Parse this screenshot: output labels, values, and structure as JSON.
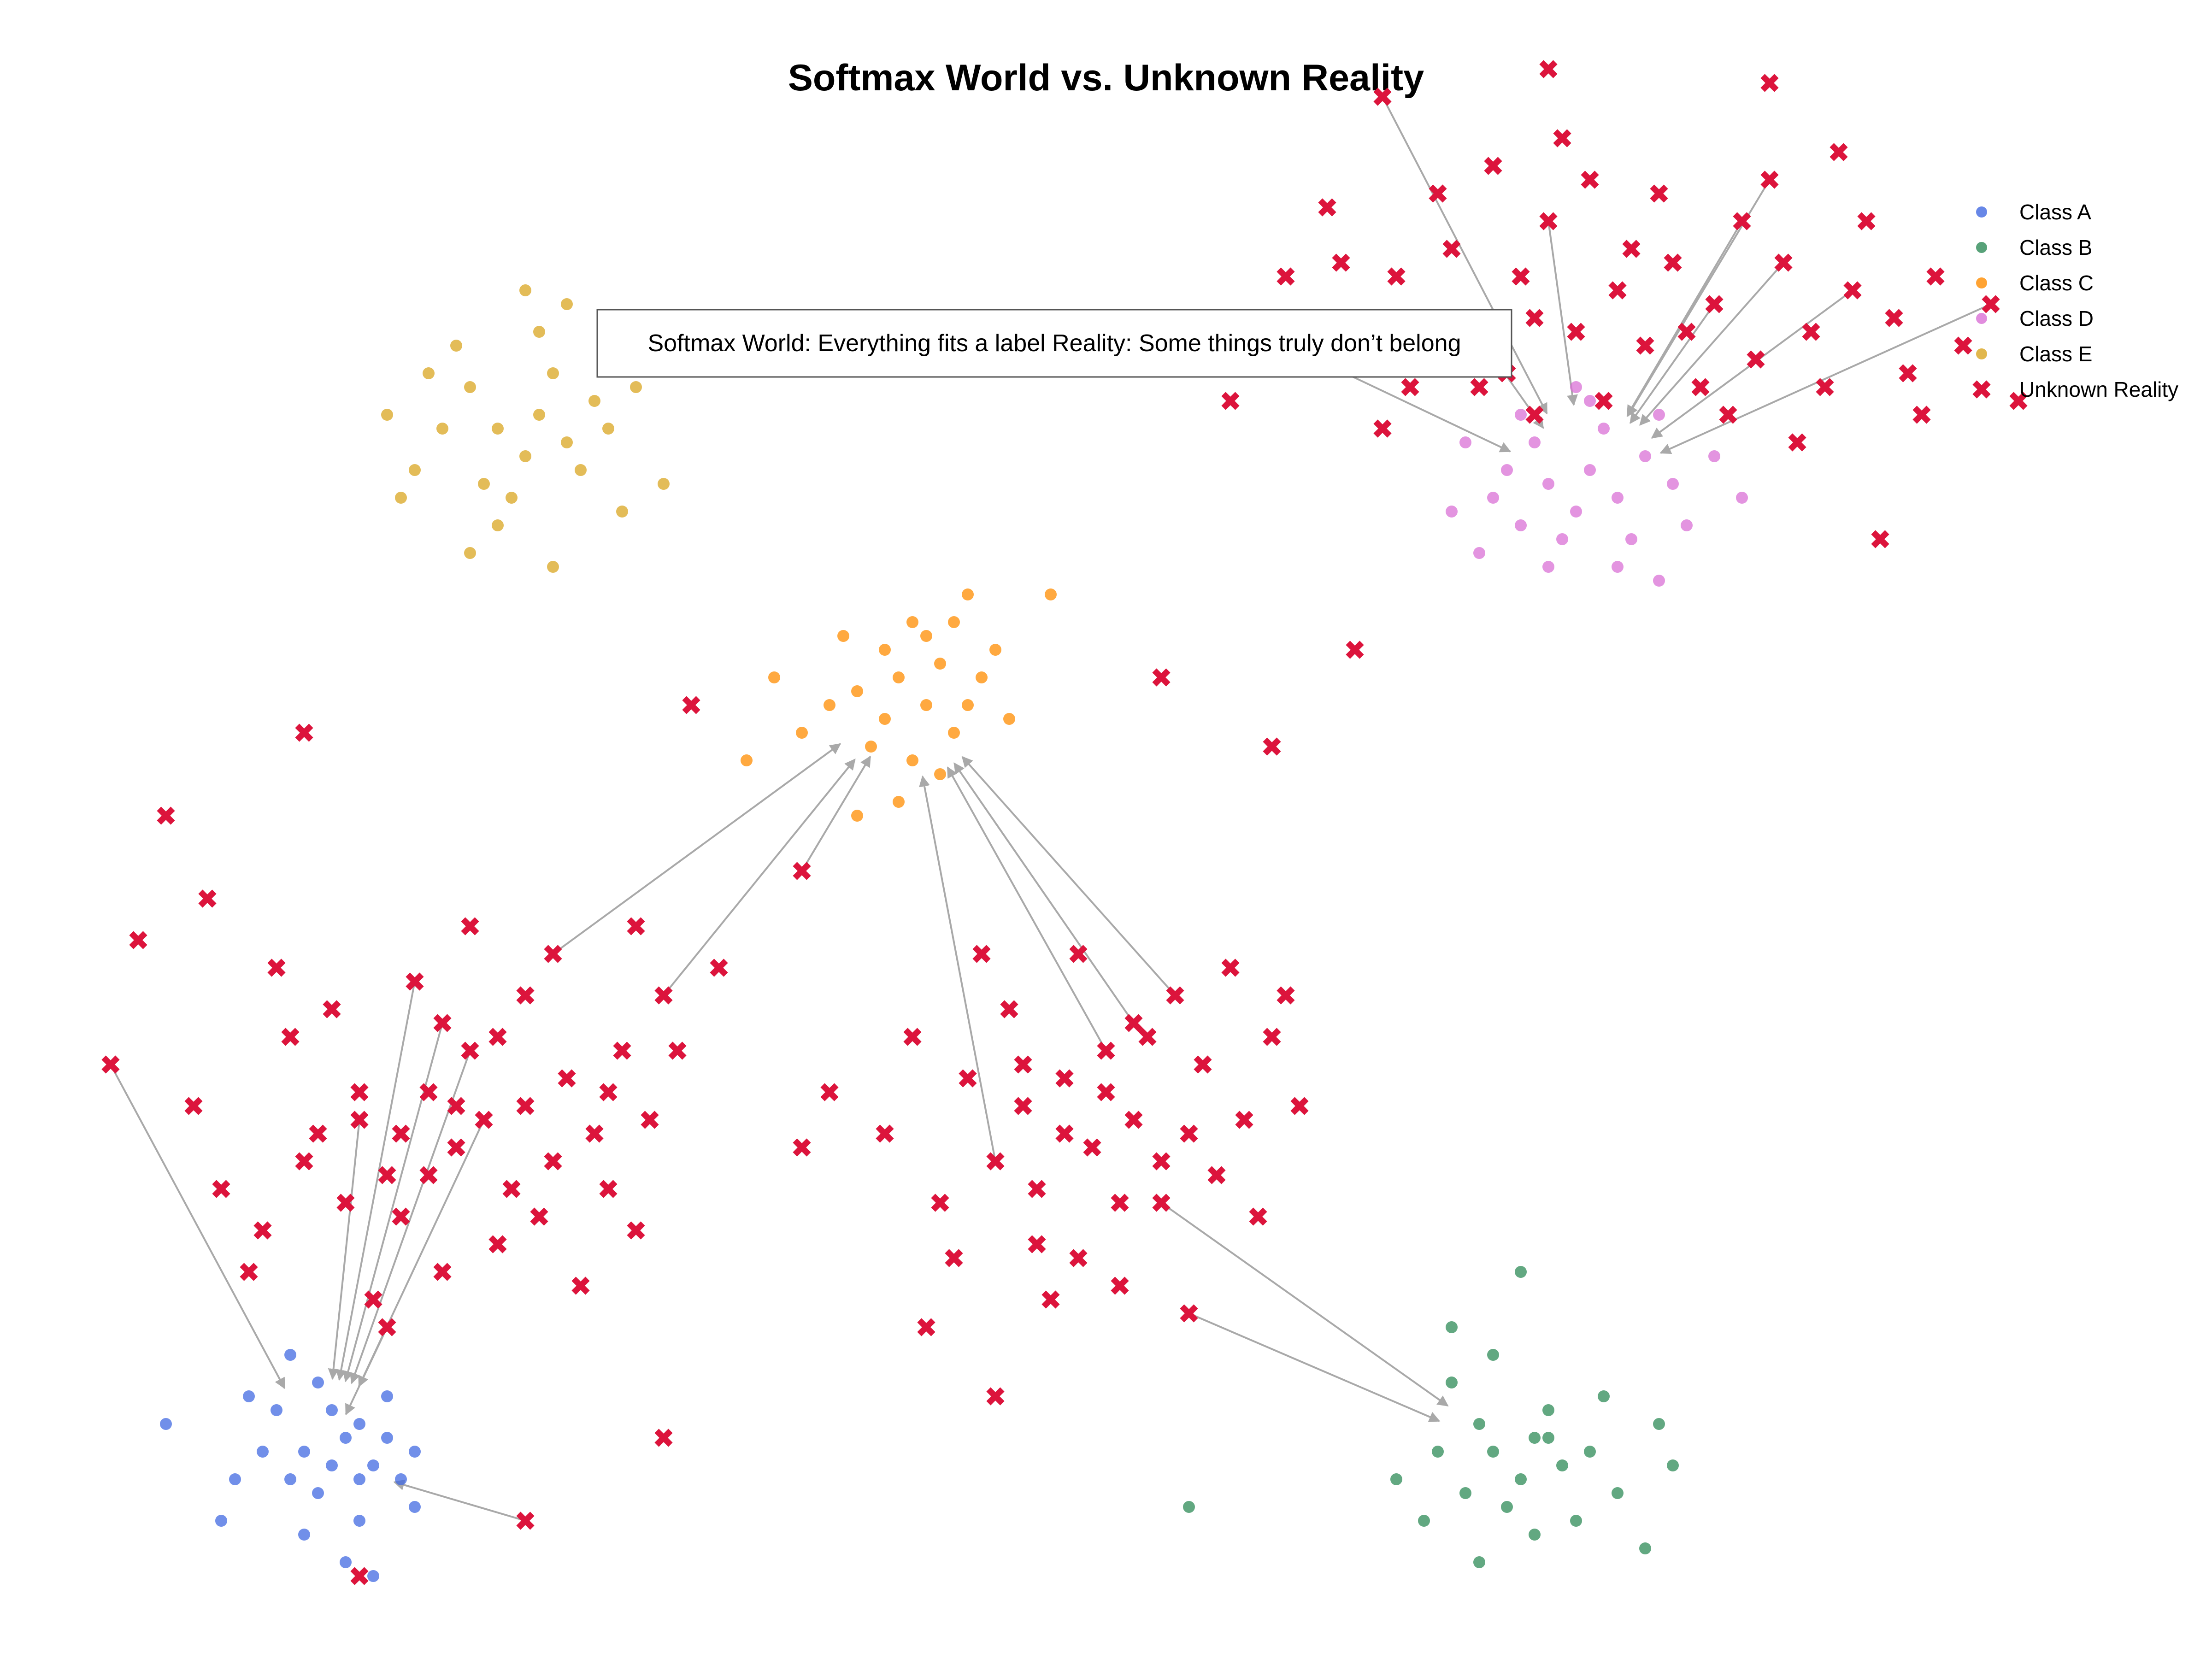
{
  "chart_data": {
    "type": "scatter",
    "title": "Softmax World vs. Unknown Reality",
    "xlabel": "",
    "ylabel": "",
    "axes_visible": false,
    "grid": false,
    "legend_position": "top-right",
    "annotation": "Softmax World: Everything fits a label Reality: Some things truly don’t belong",
    "series": [
      {
        "name": "Class A",
        "marker": "circle",
        "color": "#4169E1",
        "points": [
          [
            -2.9,
            -2.5
          ],
          [
            -2.75,
            -2.45
          ],
          [
            -2.7,
            -2.4
          ],
          [
            -2.95,
            -2.6
          ],
          [
            -2.85,
            -2.65
          ],
          [
            -2.65,
            -2.55
          ],
          [
            -2.8,
            -2.35
          ],
          [
            -3.05,
            -2.5
          ],
          [
            -2.6,
            -2.45
          ],
          [
            -2.9,
            -2.8
          ],
          [
            -2.7,
            -2.75
          ],
          [
            -3.15,
            -2.6
          ],
          [
            -2.55,
            -2.6
          ],
          [
            -2.85,
            -2.25
          ],
          [
            -3.0,
            -2.35
          ],
          [
            -2.75,
            -2.9
          ],
          [
            -3.4,
            -2.4
          ],
          [
            -2.5,
            -2.7
          ],
          [
            -2.95,
            -2.15
          ],
          [
            -3.2,
            -2.75
          ],
          [
            -2.6,
            -2.3
          ],
          [
            -2.8,
            -2.55
          ],
          [
            -2.7,
            -2.6
          ],
          [
            -2.65,
            -2.95
          ],
          [
            -3.1,
            -2.3
          ],
          [
            -2.5,
            -2.5
          ]
        ]
      },
      {
        "name": "Class B",
        "marker": "circle",
        "color": "#2E8B57",
        "points": [
          [
            1.4,
            -2.5
          ],
          [
            1.55,
            -2.45
          ],
          [
            1.5,
            -2.6
          ],
          [
            1.35,
            -2.4
          ],
          [
            1.65,
            -2.55
          ],
          [
            1.3,
            -2.65
          ],
          [
            1.6,
            -2.35
          ],
          [
            1.45,
            -2.7
          ],
          [
            1.75,
            -2.5
          ],
          [
            1.2,
            -2.5
          ],
          [
            1.8,
            -2.3
          ],
          [
            1.25,
            -2.25
          ],
          [
            1.55,
            -2.8
          ],
          [
            1.85,
            -2.65
          ],
          [
            1.05,
            -2.6
          ],
          [
            1.4,
            -2.15
          ],
          [
            2.0,
            -2.4
          ],
          [
            1.7,
            -2.75
          ],
          [
            1.35,
            -2.9
          ],
          [
            1.95,
            -2.85
          ],
          [
            1.15,
            -2.75
          ],
          [
            0.3,
            -2.7
          ],
          [
            1.5,
            -1.85
          ],
          [
            2.05,
            -2.55
          ],
          [
            1.25,
            -2.05
          ],
          [
            1.6,
            -2.45
          ]
        ]
      },
      {
        "name": "Class C",
        "marker": "circle",
        "color": "#FF8C00",
        "points": [
          [
            -0.8,
            0.15
          ],
          [
            -0.65,
            0.2
          ],
          [
            -0.55,
            0.1
          ],
          [
            -0.75,
            0.3
          ],
          [
            -0.9,
            0.25
          ],
          [
            -0.6,
            0.35
          ],
          [
            -0.5,
            0.2
          ],
          [
            -0.85,
            0.05
          ],
          [
            -0.7,
            0.0
          ],
          [
            -1.0,
            0.2
          ],
          [
            -0.45,
            0.3
          ],
          [
            -0.65,
            0.45
          ],
          [
            -1.1,
            0.1
          ],
          [
            -0.55,
            0.5
          ],
          [
            -0.8,
            0.4
          ],
          [
            -0.35,
            0.15
          ],
          [
            -1.2,
            0.3
          ],
          [
            -0.6,
            -0.05
          ],
          [
            -0.95,
            0.45
          ],
          [
            -0.4,
            0.4
          ],
          [
            -1.3,
            0.0
          ],
          [
            -0.75,
            -0.15
          ],
          [
            -0.2,
            0.6
          ],
          [
            -0.9,
            -0.2
          ],
          [
            -0.5,
            0.6
          ],
          [
            -0.7,
            0.5
          ]
        ]
      },
      {
        "name": "Class D",
        "marker": "circle",
        "color": "#DA70D6",
        "points": [
          [
            1.6,
            1.0
          ],
          [
            1.75,
            1.05
          ],
          [
            1.7,
            0.9
          ],
          [
            1.55,
            1.15
          ],
          [
            1.85,
            0.95
          ],
          [
            1.5,
            0.85
          ],
          [
            1.8,
            1.2
          ],
          [
            1.65,
            0.8
          ],
          [
            1.95,
            1.1
          ],
          [
            1.45,
            1.05
          ],
          [
            1.9,
            0.8
          ],
          [
            1.4,
            0.95
          ],
          [
            2.05,
            1.0
          ],
          [
            1.6,
            0.7
          ],
          [
            1.75,
            1.3
          ],
          [
            2.1,
            0.85
          ],
          [
            1.3,
            1.15
          ],
          [
            1.85,
            0.7
          ],
          [
            1.5,
            1.25
          ],
          [
            2.2,
            1.1
          ],
          [
            1.35,
            0.75
          ],
          [
            2.0,
            0.65
          ],
          [
            1.7,
            1.35
          ],
          [
            2.3,
            0.95
          ],
          [
            1.25,
            0.9
          ],
          [
            2.0,
            1.25
          ]
        ]
      },
      {
        "name": "Class E",
        "marker": "circle",
        "color": "#DAA520",
        "points": [
          [
            -2.2,
            1.2
          ],
          [
            -2.05,
            1.25
          ],
          [
            -2.1,
            1.1
          ],
          [
            -2.3,
            1.35
          ],
          [
            -1.95,
            1.15
          ],
          [
            -2.25,
            1.0
          ],
          [
            -2.0,
            1.4
          ],
          [
            -2.15,
            0.95
          ],
          [
            -1.85,
            1.3
          ],
          [
            -2.4,
            1.2
          ],
          [
            -1.9,
            1.05
          ],
          [
            -2.35,
            1.5
          ],
          [
            -2.05,
            1.55
          ],
          [
            -1.8,
            1.2
          ],
          [
            -2.5,
            1.05
          ],
          [
            -2.2,
            0.85
          ],
          [
            -1.75,
            0.9
          ],
          [
            -2.45,
            1.4
          ],
          [
            -2.1,
            1.7
          ],
          [
            -1.7,
            1.35
          ],
          [
            -2.6,
            1.25
          ],
          [
            -2.0,
            0.7
          ],
          [
            -2.3,
            0.75
          ],
          [
            -1.6,
            1.0
          ],
          [
            -2.55,
            0.95
          ],
          [
            -1.95,
            1.65
          ]
        ]
      },
      {
        "name": "Unknown Reality",
        "marker": "x",
        "color": "#DC143C",
        "points": [
          [
            -2.25,
            -1.3
          ],
          [
            -2.1,
            -1.25
          ],
          [
            -2.35,
            -1.4
          ],
          [
            -2.0,
            -1.45
          ],
          [
            -2.45,
            -1.2
          ],
          [
            -2.15,
            -1.55
          ],
          [
            -2.3,
            -1.05
          ],
          [
            -1.95,
            -1.15
          ],
          [
            -2.55,
            -1.35
          ],
          [
            -2.05,
            -1.65
          ],
          [
            -2.6,
            -1.5
          ],
          [
            -1.85,
            -1.35
          ],
          [
            -2.4,
            -0.95
          ],
          [
            -2.7,
            -1.2
          ],
          [
            -1.8,
            -1.55
          ],
          [
            -2.2,
            -1.75
          ],
          [
            -2.75,
            -1.6
          ],
          [
            -1.75,
            -1.05
          ],
          [
            -2.5,
            -0.8
          ],
          [
            -2.85,
            -1.35
          ],
          [
            -1.65,
            -1.3
          ],
          [
            -2.95,
            -1.0
          ],
          [
            -2.1,
            -0.85
          ],
          [
            -3.05,
            -1.7
          ],
          [
            -1.6,
            -0.85
          ],
          [
            -3.3,
            -1.25
          ],
          [
            -2.65,
            -1.95
          ],
          [
            -1.9,
            -1.9
          ],
          [
            -3.2,
            -1.55
          ],
          [
            -1.7,
            -1.7
          ],
          [
            -2.6,
            -2.05
          ],
          [
            -3.5,
            -0.65
          ],
          [
            -3.0,
            -0.75
          ],
          [
            -1.7,
            -0.6
          ],
          [
            -2.3,
            -0.6
          ],
          [
            -2.8,
            -0.9
          ],
          [
            -3.6,
            -1.1
          ],
          [
            -1.55,
            -1.05
          ],
          [
            -2.4,
            -1.85
          ],
          [
            -3.1,
            -1.85
          ],
          [
            -3.25,
            -0.5
          ],
          [
            -1.4,
            -0.75
          ],
          [
            -2.0,
            -0.7
          ],
          [
            -2.55,
            -1.65
          ],
          [
            -2.9,
            -1.45
          ],
          [
            -2.2,
            -1.0
          ],
          [
            -2.45,
            -1.5
          ],
          [
            -1.8,
            -1.2
          ],
          [
            -2.7,
            -1.3
          ],
          [
            -2.35,
            -1.25
          ],
          [
            -0.1,
            -1.8
          ],
          [
            -0.05,
            -1.4
          ],
          [
            0.1,
            -1.3
          ],
          [
            -0.25,
            -1.55
          ],
          [
            0.2,
            -1.6
          ],
          [
            -0.15,
            -1.15
          ],
          [
            0.3,
            -1.35
          ],
          [
            0.05,
            -1.9
          ],
          [
            -0.3,
            -1.25
          ],
          [
            0.35,
            -1.1
          ],
          [
            -0.4,
            -1.45
          ],
          [
            0.15,
            -1.0
          ],
          [
            -0.2,
            -1.95
          ],
          [
            0.4,
            -1.5
          ],
          [
            0.0,
            -1.2
          ],
          [
            -0.35,
            -0.9
          ],
          [
            0.25,
            -0.85
          ],
          [
            -0.5,
            -1.15
          ],
          [
            0.5,
            -1.3
          ],
          [
            -0.1,
            -0.7
          ],
          [
            0.45,
            -0.75
          ],
          [
            -0.6,
            -1.6
          ],
          [
            0.3,
            -2.0
          ],
          [
            -0.45,
            -0.7
          ],
          [
            0.6,
            -1.0
          ],
          [
            -0.7,
            -1.0
          ],
          [
            0.05,
            -1.6
          ],
          [
            -0.25,
            -1.75
          ],
          [
            0.1,
            -0.95
          ],
          [
            -0.55,
            -1.8
          ],
          [
            0.2,
            -1.45
          ],
          [
            -0.15,
            -1.35
          ],
          [
            0.65,
            -0.85
          ],
          [
            -0.8,
            -1.35
          ],
          [
            0.0,
            -1.05
          ],
          [
            0.7,
            -1.25
          ],
          [
            -1.1,
            -1.4
          ],
          [
            -0.65,
            -2.05
          ],
          [
            0.55,
            -1.65
          ],
          [
            -0.3,
            -1.1
          ],
          [
            1.3,
            1.6
          ],
          [
            1.5,
            1.75
          ],
          [
            1.7,
            1.55
          ],
          [
            1.45,
            1.4
          ],
          [
            1.85,
            1.7
          ],
          [
            1.25,
            1.85
          ],
          [
            1.6,
            1.95
          ],
          [
            1.95,
            1.5
          ],
          [
            1.35,
            1.35
          ],
          [
            2.05,
            1.8
          ],
          [
            1.15,
            1.55
          ],
          [
            1.75,
            2.1
          ],
          [
            2.2,
            1.65
          ],
          [
            1.05,
            1.75
          ],
          [
            2.35,
            1.45
          ],
          [
            1.55,
            1.25
          ],
          [
            2.0,
            2.05
          ],
          [
            0.95,
            1.5
          ],
          [
            2.45,
            1.8
          ],
          [
            1.2,
            2.05
          ],
          [
            2.55,
            1.55
          ],
          [
            0.85,
            1.8
          ],
          [
            2.25,
            1.25
          ],
          [
            1.65,
            2.25
          ],
          [
            2.7,
            1.7
          ],
          [
            0.75,
            1.45
          ],
          [
            2.6,
            1.35
          ],
          [
            1.0,
            1.2
          ],
          [
            2.85,
            1.6
          ],
          [
            1.8,
            1.3
          ],
          [
            2.4,
            2.1
          ],
          [
            0.65,
            1.75
          ],
          [
            2.9,
            1.4
          ],
          [
            2.15,
            1.35
          ],
          [
            1.4,
            2.15
          ],
          [
            2.75,
            1.95
          ],
          [
            0.55,
            1.55
          ],
          [
            3.0,
            1.75
          ],
          [
            1.9,
            1.85
          ],
          [
            2.5,
            1.15
          ],
          [
            1.1,
            1.35
          ],
          [
            3.1,
            1.5
          ],
          [
            2.3,
            1.95
          ],
          [
            0.45,
            1.3
          ],
          [
            2.65,
            2.2
          ],
          [
            1.55,
            1.6
          ],
          [
            2.95,
            1.25
          ],
          [
            0.8,
            2.0
          ],
          [
            3.2,
            1.65
          ],
          [
            2.1,
            1.55
          ],
          [
            -3.4,
            -0.2
          ],
          [
            -2.9,
            0.1
          ],
          [
            -1.0,
            -1.2
          ],
          [
            -1.5,
            0.2
          ],
          [
            -1.1,
            -0.4
          ],
          [
            0.2,
            0.3
          ],
          [
            0.6,
            0.05
          ],
          [
            0.9,
            0.4
          ],
          [
            2.8,
            0.8
          ],
          [
            3.3,
            1.3
          ],
          [
            1.0,
            2.4
          ],
          [
            1.6,
            2.5
          ],
          [
            2.4,
            2.45
          ],
          [
            -2.7,
            -2.95
          ],
          [
            -2.2,
            -3.5
          ],
          [
            -0.4,
            -2.3
          ],
          [
            -2.1,
            -2.75
          ],
          [
            -1.6,
            -2.45
          ]
        ]
      }
    ]
  },
  "legend": {
    "items": [
      {
        "label": "Class A",
        "color": "#4169E1",
        "marker": "circle"
      },
      {
        "label": "Class B",
        "color": "#2E8B57",
        "marker": "circle"
      },
      {
        "label": "Class C",
        "color": "#FF8C00",
        "marker": "circle"
      },
      {
        "label": "Class D",
        "color": "#DA70D6",
        "marker": "circle"
      },
      {
        "label": "Class E",
        "color": "#DAA520",
        "marker": "circle"
      },
      {
        "label": "Unknown Reality",
        "color": "#DC143C",
        "marker": "x"
      }
    ]
  },
  "arrow_color": "#A9A9A9"
}
